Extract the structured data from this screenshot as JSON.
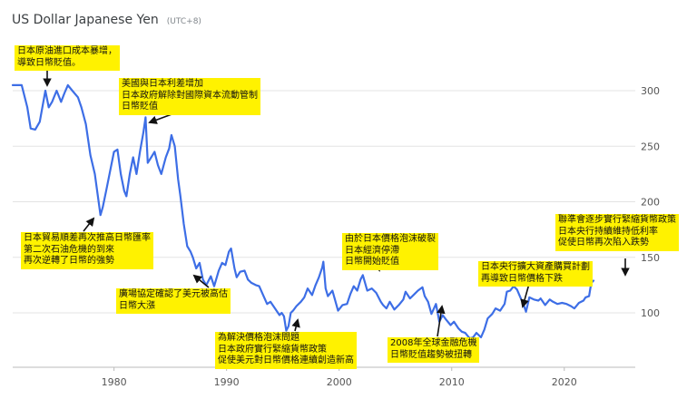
{
  "header": {
    "title": "US Dollar Japanese Yen",
    "subtitle": "(UTC+8)"
  },
  "colors": {
    "line": "#3d6ee6",
    "annotation_bg": "#fff200",
    "grid": "#e3e3e3"
  },
  "chart_data": {
    "type": "line",
    "title": "US Dollar Japanese Yen",
    "subtitle": "(UTC+8)",
    "xlabel": "",
    "ylabel": "",
    "xlim": [
      1971.0,
      2025.5
    ],
    "ylim": [
      50,
      375
    ],
    "x_ticks": [
      1980,
      1990,
      2000,
      2010,
      2020
    ],
    "y_ticks": [
      100,
      150,
      200,
      250,
      300
    ],
    "y_axis_side": "right",
    "grid": "horizontal",
    "series": [
      {
        "points": [
          [
            1971.0,
            305
          ],
          [
            1971.8,
            305
          ],
          [
            1972.3,
            285
          ],
          [
            1972.6,
            266
          ],
          [
            1973.0,
            265
          ],
          [
            1973.4,
            272
          ],
          [
            1973.9,
            300
          ],
          [
            1974.2,
            285
          ],
          [
            1974.5,
            290
          ],
          [
            1974.9,
            300
          ],
          [
            1975.3,
            290
          ],
          [
            1975.6,
            298
          ],
          [
            1975.9,
            305
          ],
          [
            1976.3,
            300
          ],
          [
            1976.8,
            294
          ],
          [
            1977.1,
            285
          ],
          [
            1977.5,
            270
          ],
          [
            1977.9,
            242
          ],
          [
            1978.3,
            225
          ],
          [
            1978.8,
            188
          ],
          [
            1979.0,
            195
          ],
          [
            1979.3,
            210
          ],
          [
            1979.7,
            230
          ],
          [
            1980.0,
            245
          ],
          [
            1980.3,
            247
          ],
          [
            1980.6,
            225
          ],
          [
            1980.9,
            210
          ],
          [
            1981.1,
            205
          ],
          [
            1981.4,
            225
          ],
          [
            1981.7,
            240
          ],
          [
            1982.0,
            225
          ],
          [
            1982.3,
            245
          ],
          [
            1982.6,
            262
          ],
          [
            1982.8,
            276
          ],
          [
            1983.0,
            235
          ],
          [
            1983.3,
            240
          ],
          [
            1983.6,
            245
          ],
          [
            1983.9,
            233
          ],
          [
            1984.2,
            225
          ],
          [
            1984.6,
            240
          ],
          [
            1984.9,
            248
          ],
          [
            1985.1,
            260
          ],
          [
            1985.4,
            250
          ],
          [
            1985.7,
            220
          ],
          [
            1985.9,
            205
          ],
          [
            1986.2,
            180
          ],
          [
            1986.5,
            160
          ],
          [
            1986.8,
            155
          ],
          [
            1987.0,
            150
          ],
          [
            1987.3,
            140
          ],
          [
            1987.6,
            145
          ],
          [
            1987.9,
            130
          ],
          [
            1988.2,
            125
          ],
          [
            1988.6,
            133
          ],
          [
            1988.9,
            124
          ],
          [
            1989.3,
            138
          ],
          [
            1989.6,
            145
          ],
          [
            1989.9,
            143
          ],
          [
            1990.2,
            155
          ],
          [
            1990.4,
            158
          ],
          [
            1990.7,
            140
          ],
          [
            1990.9,
            132
          ],
          [
            1991.2,
            137
          ],
          [
            1991.6,
            138
          ],
          [
            1991.9,
            130
          ],
          [
            1992.2,
            127
          ],
          [
            1992.6,
            125
          ],
          [
            1992.9,
            124
          ],
          [
            1993.2,
            117
          ],
          [
            1993.6,
            108
          ],
          [
            1993.9,
            110
          ],
          [
            1994.3,
            104
          ],
          [
            1994.7,
            98
          ],
          [
            1994.9,
            100
          ],
          [
            1995.1,
            97
          ],
          [
            1995.3,
            84
          ],
          [
            1995.5,
            88
          ],
          [
            1995.7,
            100
          ],
          [
            1995.9,
            102
          ],
          [
            1996.2,
            106
          ],
          [
            1996.6,
            110
          ],
          [
            1996.9,
            114
          ],
          [
            1997.2,
            122
          ],
          [
            1997.6,
            116
          ],
          [
            1997.9,
            125
          ],
          [
            1998.2,
            132
          ],
          [
            1998.5,
            141
          ],
          [
            1998.6,
            146
          ],
          [
            1998.8,
            122
          ],
          [
            1999.0,
            115
          ],
          [
            1999.4,
            120
          ],
          [
            1999.9,
            102
          ],
          [
            2000.3,
            107
          ],
          [
            2000.7,
            108
          ],
          [
            2001.0,
            117
          ],
          [
            2001.3,
            124
          ],
          [
            2001.6,
            120
          ],
          [
            2001.9,
            130
          ],
          [
            2002.1,
            134
          ],
          [
            2002.5,
            120
          ],
          [
            2002.9,
            122
          ],
          [
            2003.3,
            118
          ],
          [
            2003.7,
            110
          ],
          [
            2003.9,
            107
          ],
          [
            2004.2,
            104
          ],
          [
            2004.5,
            110
          ],
          [
            2004.9,
            103
          ],
          [
            2005.3,
            107
          ],
          [
            2005.7,
            112
          ],
          [
            2005.9,
            119
          ],
          [
            2006.3,
            113
          ],
          [
            2006.7,
            117
          ],
          [
            2007.0,
            120
          ],
          [
            2007.4,
            123
          ],
          [
            2007.6,
            115
          ],
          [
            2007.9,
            110
          ],
          [
            2008.2,
            99
          ],
          [
            2008.6,
            108
          ],
          [
            2008.9,
            92
          ],
          [
            2009.2,
            98
          ],
          [
            2009.5,
            94
          ],
          [
            2009.9,
            89
          ],
          [
            2010.2,
            92
          ],
          [
            2010.6,
            86
          ],
          [
            2010.9,
            83
          ],
          [
            2011.2,
            82
          ],
          [
            2011.6,
            77
          ],
          [
            2011.9,
            78
          ],
          [
            2012.2,
            82
          ],
          [
            2012.6,
            78
          ],
          [
            2012.9,
            85
          ],
          [
            2013.2,
            95
          ],
          [
            2013.6,
            99
          ],
          [
            2013.9,
            104
          ],
          [
            2014.3,
            102
          ],
          [
            2014.7,
            108
          ],
          [
            2014.9,
            119
          ],
          [
            2015.2,
            120
          ],
          [
            2015.5,
            124
          ],
          [
            2015.8,
            121
          ],
          [
            2016.1,
            114
          ],
          [
            2016.4,
            107
          ],
          [
            2016.6,
            101
          ],
          [
            2016.9,
            114
          ],
          [
            2017.3,
            112
          ],
          [
            2017.7,
            111
          ],
          [
            2017.9,
            113
          ],
          [
            2018.3,
            107
          ],
          [
            2018.7,
            112
          ],
          [
            2019.0,
            110
          ],
          [
            2019.4,
            108
          ],
          [
            2019.8,
            109
          ],
          [
            2020.2,
            108
          ],
          [
            2020.6,
            106
          ],
          [
            2020.9,
            104
          ],
          [
            2021.3,
            109
          ],
          [
            2021.7,
            111
          ],
          [
            2021.9,
            114
          ],
          [
            2022.2,
            115
          ],
          [
            2022.4,
            127
          ],
          [
            2022.6,
            129
          ]
        ]
      }
    ],
    "annotations": [
      {
        "lines": [
          "日本原油進口成本暴增，",
          "導致日幣貶值。"
        ]
      },
      {
        "lines": [
          "美國與日本利差增加",
          "日本政府解除對國際資本流動管制",
          "日幣貶值"
        ]
      },
      {
        "lines": [
          "日本貿易順差再次推高日幣匯率",
          "第二次石油危機的到來",
          "再次逆轉了日幣的強勢"
        ]
      },
      {
        "lines": [
          "廣場協定確認了美元被高估",
          "日幣大漲"
        ]
      },
      {
        "lines": [
          "為解決價格泡沫問題",
          "日本政府實行緊縮貨幣政策",
          "促使美元對日幣價格連續創造新高"
        ]
      },
      {
        "lines": [
          "由於日本價格泡沫破裂",
          "日本經濟停滯",
          "日幣開始貶值"
        ]
      },
      {
        "lines": [
          "2008年全球金融危機",
          "日幣貶值趨勢被扭轉"
        ]
      },
      {
        "lines": [
          "日本央行擴大資產購買計劃",
          "再導致日幣價格下跌"
        ]
      },
      {
        "lines": [
          "聯準會逐步實行緊縮貨幣政策",
          "日本央行持續維持低利率",
          "促使日幣再次陷入跌勢"
        ]
      }
    ]
  }
}
